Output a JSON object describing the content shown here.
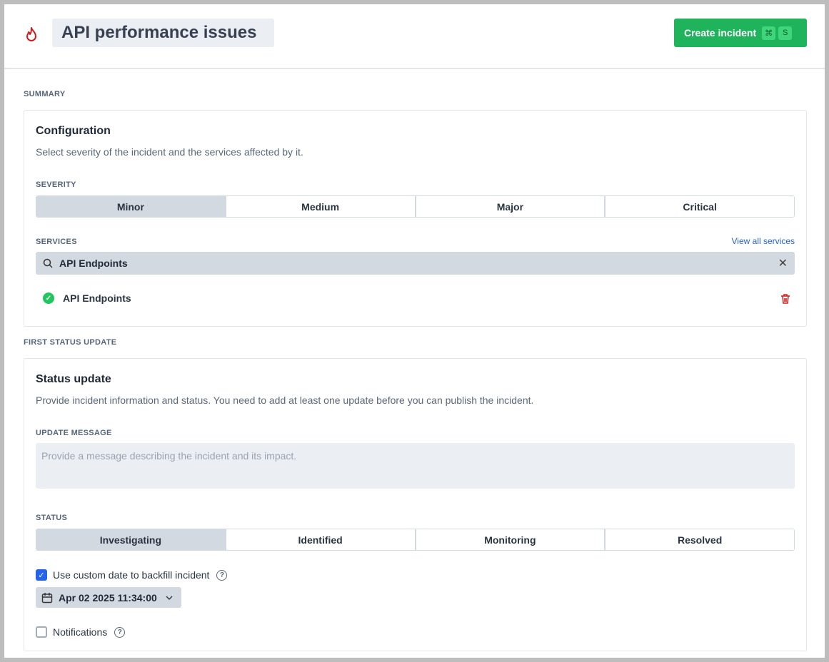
{
  "header": {
    "title": "API performance issues",
    "create_label": "Create incident",
    "shortcut": [
      "⌘",
      "S"
    ],
    "icon": "flame-icon"
  },
  "summary": {
    "section_label": "SUMMARY",
    "title": "Configuration",
    "description": "Select severity of the incident and the services affected by it.",
    "severity_label": "SEVERITY",
    "severities": [
      "Minor",
      "Medium",
      "Major",
      "Critical"
    ],
    "selected_severity": "Minor",
    "services_label": "SERVICES",
    "view_all": "View all services",
    "search_value": "API Endpoints",
    "services": [
      {
        "name": "API Endpoints",
        "status": "operational"
      }
    ]
  },
  "status_update": {
    "section_label": "FIRST STATUS UPDATE",
    "title": "Status update",
    "description": "Provide incident information and status. You need to add at least one update before you can publish the incident.",
    "message_label": "UPDATE MESSAGE",
    "message_placeholder": "Provide a message describing the incident and its impact.",
    "message_value": "",
    "status_label": "STATUS",
    "statuses": [
      "Investigating",
      "Identified",
      "Monitoring",
      "Resolved"
    ],
    "selected_status": "Investigating",
    "custom_date_label": "Use custom date to backfill incident",
    "custom_date_checked": true,
    "date_value": "Apr 02 2025 11:34:00",
    "notifications_label": "Notifications",
    "notifications_checked": false
  },
  "colors": {
    "primary": "#1fb35c",
    "accent": "#2563eb",
    "danger": "#d11a1a"
  }
}
